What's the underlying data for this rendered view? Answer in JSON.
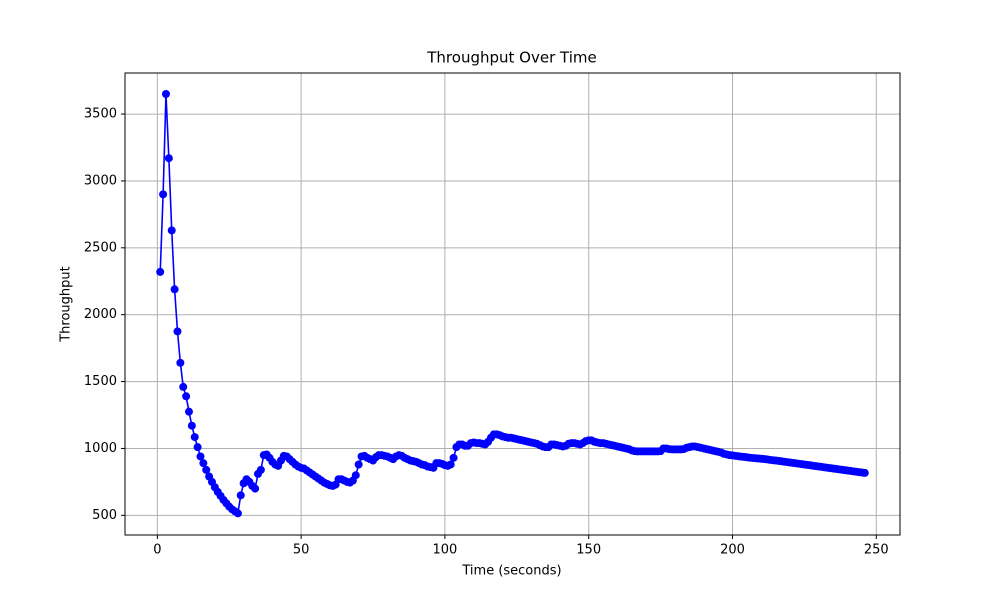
{
  "chart_data": {
    "type": "line",
    "title": "Throughput Over Time",
    "x_label": "Time (seconds)",
    "y_label": "Throughput",
    "x": [
      1,
      2,
      3,
      4,
      5,
      6,
      7,
      8,
      9,
      10,
      11,
      12,
      13,
      14,
      15,
      16,
      17,
      18,
      19,
      20,
      21,
      22,
      23,
      24,
      25,
      26,
      27,
      28,
      29,
      30,
      31,
      32,
      33,
      34,
      35,
      36,
      37,
      38,
      39,
      40,
      41,
      42,
      43,
      44,
      45,
      46,
      47,
      48,
      49,
      50,
      51,
      52,
      53,
      54,
      55,
      56,
      57,
      58,
      59,
      60,
      61,
      62,
      63,
      64,
      65,
      66,
      67,
      68,
      69,
      70,
      71,
      72,
      73,
      74,
      75,
      76,
      77,
      78,
      79,
      80,
      81,
      82,
      83,
      84,
      85,
      86,
      87,
      88,
      89,
      90,
      91,
      92,
      93,
      94,
      95,
      96,
      97,
      98,
      99,
      100,
      101,
      102,
      103,
      104,
      105,
      106,
      107,
      108,
      109,
      110,
      111,
      112,
      113,
      114,
      115,
      116,
      117,
      118,
      119,
      120,
      121,
      122,
      123,
      124,
      125,
      126,
      127,
      128,
      129,
      130,
      131,
      132,
      133,
      134,
      135,
      136,
      137,
      138,
      139,
      140,
      141,
      142,
      143,
      144,
      145,
      146,
      147,
      148,
      149,
      150,
      151,
      152,
      153,
      154,
      155,
      156,
      157,
      158,
      159,
      160,
      161,
      162,
      163,
      164,
      165,
      166,
      167,
      168,
      169,
      170,
      171,
      172,
      173,
      174,
      175,
      176,
      177,
      178,
      179,
      180,
      181,
      182,
      183,
      184,
      185,
      186,
      187,
      188,
      189,
      190,
      191,
      192,
      193,
      194,
      195,
      196,
      197,
      198,
      199,
      200,
      201,
      202,
      203,
      204,
      205,
      206,
      207,
      208,
      209,
      210,
      211,
      212,
      213,
      214,
      215,
      216,
      217,
      218,
      219,
      220,
      221,
      222,
      223,
      224,
      225,
      226,
      227,
      228,
      229,
      230,
      231,
      232,
      233,
      234,
      235,
      236,
      237,
      238,
      239,
      240,
      241,
      242,
      243,
      244,
      245,
      246
    ],
    "series": [
      {
        "name": "Throughput",
        "color": "#0000ff",
        "values": [
          2320,
          2900,
          3650,
          3170,
          2630,
          2190,
          1875,
          1640,
          1460,
          1390,
          1275,
          1170,
          1085,
          1010,
          940,
          890,
          840,
          790,
          750,
          710,
          675,
          645,
          615,
          590,
          565,
          545,
          530,
          515,
          650,
          740,
          770,
          750,
          720,
          700,
          810,
          840,
          950,
          955,
          930,
          900,
          880,
          870,
          910,
          945,
          940,
          920,
          900,
          880,
          865,
          855,
          850,
          835,
          820,
          805,
          790,
          775,
          760,
          745,
          735,
          725,
          720,
          730,
          770,
          770,
          760,
          750,
          745,
          760,
          800,
          880,
          940,
          945,
          930,
          920,
          910,
          935,
          950,
          950,
          945,
          940,
          930,
          920,
          940,
          950,
          945,
          930,
          920,
          910,
          905,
          900,
          890,
          880,
          875,
          865,
          860,
          855,
          890,
          890,
          885,
          875,
          870,
          880,
          930,
          1010,
          1030,
          1030,
          1020,
          1020,
          1040,
          1045,
          1040,
          1040,
          1035,
          1030,
          1050,
          1080,
          1105,
          1105,
          1100,
          1090,
          1085,
          1080,
          1080,
          1075,
          1070,
          1065,
          1060,
          1055,
          1050,
          1045,
          1040,
          1035,
          1025,
          1015,
          1010,
          1010,
          1030,
          1030,
          1025,
          1020,
          1015,
          1020,
          1035,
          1040,
          1040,
          1035,
          1030,
          1040,
          1055,
          1060,
          1060,
          1050,
          1045,
          1040,
          1040,
          1035,
          1030,
          1025,
          1020,
          1015,
          1010,
          1005,
          1000,
          995,
          985,
          980,
          978,
          978,
          978,
          978,
          978,
          978,
          978,
          978,
          980,
          1000,
          1000,
          995,
          993,
          993,
          993,
          993,
          995,
          1005,
          1010,
          1015,
          1015,
          1010,
          1005,
          1000,
          995,
          990,
          985,
          980,
          975,
          970,
          960,
          955,
          950,
          948,
          945,
          942,
          939,
          937,
          934,
          931,
          929,
          927,
          925,
          923,
          921,
          918,
          915,
          912,
          910,
          907,
          904,
          901,
          898,
          895,
          892,
          889,
          886,
          883,
          880,
          877,
          874,
          871,
          868,
          865,
          862,
          859,
          856,
          853,
          850,
          847,
          844,
          841,
          838,
          835,
          832,
          829,
          826,
          823,
          820,
          817
        ]
      }
    ],
    "xlim": [
      -11.25,
      258.25
    ],
    "ylim": [
      353,
      3807
    ],
    "xticks": [
      0,
      50,
      100,
      150,
      200,
      250
    ],
    "yticks": [
      500,
      1000,
      1500,
      2000,
      2500,
      3000,
      3500
    ],
    "grid": true
  }
}
